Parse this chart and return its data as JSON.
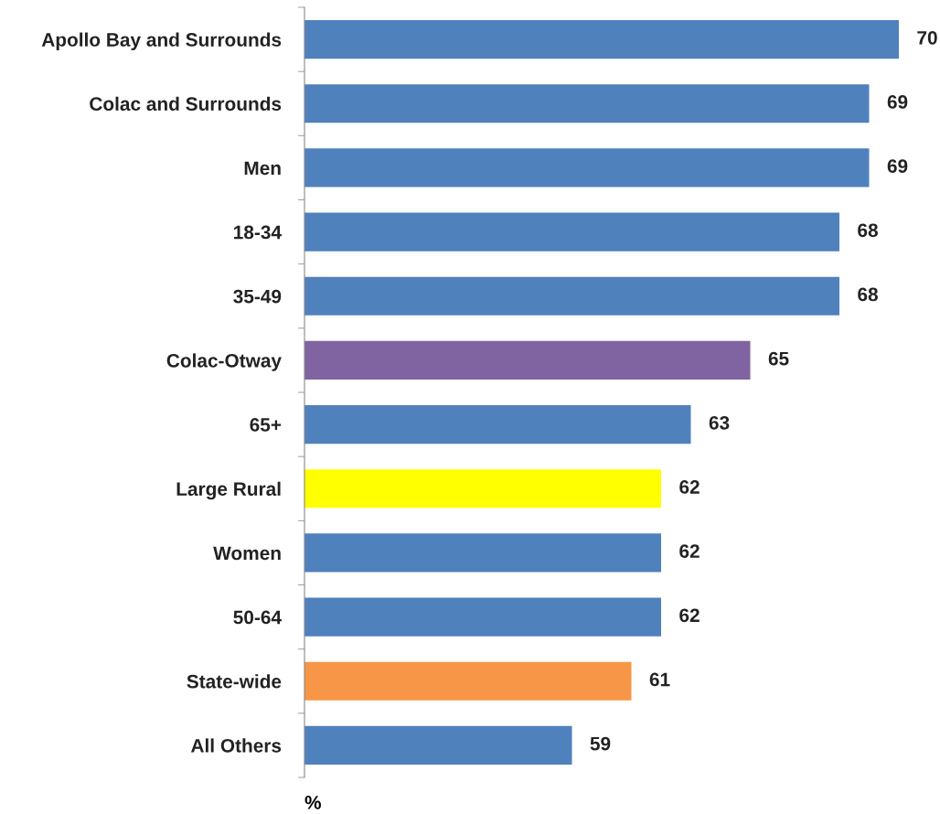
{
  "chart_data": {
    "type": "bar",
    "orientation": "horizontal",
    "xlabel": "%",
    "categories": [
      "Apollo Bay and Surrounds",
      "Colac and Surrounds",
      "Men",
      "18-34",
      "35-49",
      "Colac-Otway",
      "65+",
      "Large Rural",
      "Women",
      "50-64",
      "State-wide",
      "All Others"
    ],
    "values": [
      70,
      69,
      69,
      68,
      68,
      65,
      63,
      62,
      62,
      62,
      61,
      59
    ],
    "colors": [
      "#4f81bd",
      "#4f81bd",
      "#4f81bd",
      "#4f81bd",
      "#4f81bd",
      "#8064a2",
      "#4f81bd",
      "#ffff00",
      "#4f81bd",
      "#4f81bd",
      "#f79646",
      "#4f81bd"
    ],
    "xlim": [
      50,
      70
    ],
    "data_labels": true,
    "grid": false,
    "legend": false
  }
}
